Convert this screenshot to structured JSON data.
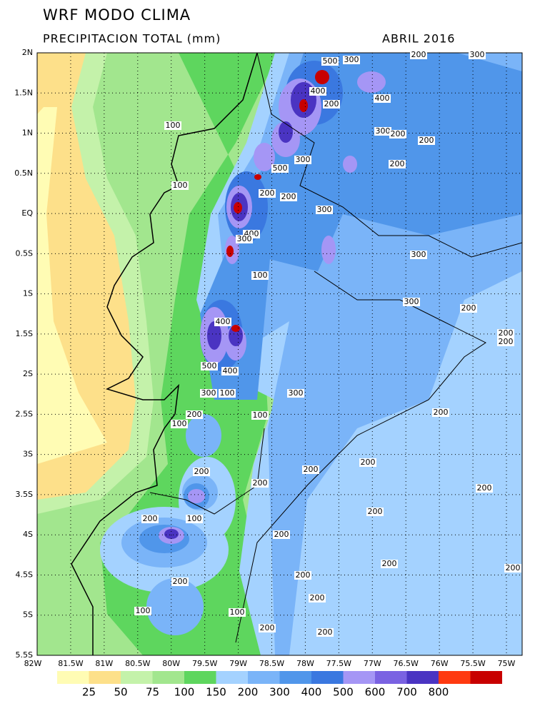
{
  "header": {
    "title": "WRF MODO CLIMA",
    "subtitle": "PRECIPITACION TOTAL (mm)",
    "date": "ABRIL 2016"
  },
  "map": {
    "lon_labels": [
      "82W",
      "81.5W",
      "81W",
      "80.5W",
      "80W",
      "79.5W",
      "79W",
      "78.5W",
      "78W",
      "77.5W",
      "77W",
      "76.5W",
      "76W",
      "75.5W",
      "75W"
    ],
    "lat_labels": [
      "2N",
      "1.5N",
      "1N",
      "0.5N",
      "EQ",
      "0.5S",
      "1S",
      "1.5S",
      "2S",
      "2.5S",
      "3S",
      "3.5S",
      "4S",
      "4.5S",
      "5S",
      "5.5S"
    ],
    "contour_labels": [
      "500",
      "300",
      "200",
      "300",
      "400",
      "400",
      "200",
      "300",
      "200",
      "200",
      "100",
      "300",
      "500",
      "200",
      "200",
      "200",
      "300",
      "100",
      "400",
      "300",
      "300",
      "100",
      "300",
      "200",
      "400",
      "200",
      "200",
      "500",
      "400",
      "300",
      "100",
      "300",
      "200",
      "100",
      "100",
      "200",
      "200",
      "200",
      "200",
      "200",
      "200",
      "200",
      "200",
      "100",
      "200",
      "200",
      "200",
      "200",
      "200",
      "200",
      "100",
      "100",
      "200",
      "200"
    ]
  },
  "legend": {
    "levels": [
      25,
      50,
      75,
      100,
      150,
      200,
      300,
      400,
      500,
      600,
      700,
      800
    ],
    "colors": [
      "#fffcb4",
      "#fde08a",
      "#c4f2aa",
      "#a2e68e",
      "#5ed65e",
      "#a4d2ff",
      "#7ab4f8",
      "#5096ea",
      "#3a78e0",
      "#a596f5",
      "#7a62e2",
      "#4a34c2",
      "#ff3a10",
      "#c80000"
    ]
  }
}
